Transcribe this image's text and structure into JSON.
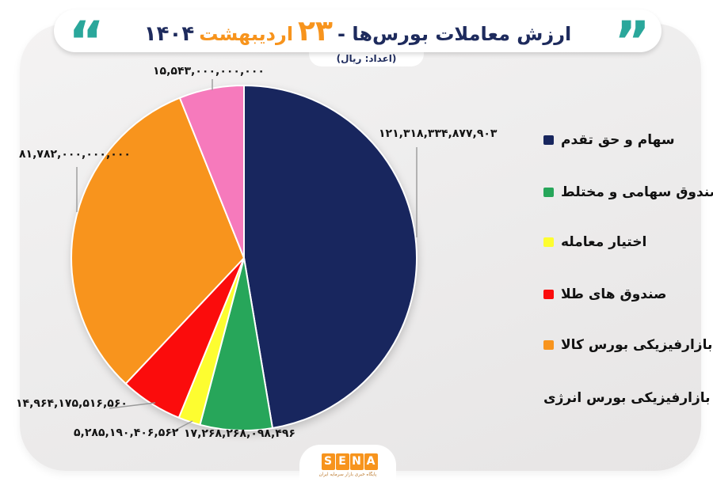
{
  "header": {
    "quote_left": "“",
    "quote_right": "”",
    "title_prefix": "ارزش معاملات بورس‌ها -",
    "title_day": "۲۳",
    "title_month": "اردیبهشت",
    "title_year": "۱۴۰۴",
    "subtitle": "(اعداد: ریال)"
  },
  "chart_data": {
    "type": "pie",
    "title": "ارزش معاملات بورس‌ها - ۲۳ اردیبهشت ۱۴۰۴",
    "unit_note": "(اعداد: ریال)",
    "start_angle": "12-oclock",
    "direction": "clockwise",
    "legend_position": "right",
    "slices": [
      {
        "label": "سهام و حق تقدم",
        "value": 121318334877903,
        "display_value": "۱۲۱,۳۱۸,۳۳۴,۸۷۷,۹۰۳",
        "color": "#18265E"
      },
      {
        "label": "صندوق سهامی و مختلط",
        "value": 17268268098496,
        "display_value": "۱۷,۲۶۸,۲۶۸,۰۹۸,۴۹۶",
        "color": "#27A65A"
      },
      {
        "label": "اختیار معامله",
        "value": 5285190406562,
        "display_value": "۵,۲۸۵,۱۹۰,۴۰۶,۵۶۲",
        "color": "#FDFD30"
      },
      {
        "label": "صندوق های طلا",
        "value": 14964175516560,
        "display_value": "۱۴,۹۶۴,۱۷۵,۵۱۶,۵۶۰",
        "color": "#FB0C0C"
      },
      {
        "label": "بازارفیزیکی بورس کالا",
        "value": 81782000000000,
        "display_value": "۸۱,۷۸۲,۰۰۰,۰۰۰,۰۰۰",
        "color": "#F8941D"
      },
      {
        "label": "بازارفیزیکی بورس انرژی",
        "value": 15543000000000,
        "display_value": "۱۵,۵۴۳,۰۰۰,۰۰۰,۰۰۰",
        "color": "#F67ABC"
      }
    ]
  },
  "footer": {
    "logo_letters": {
      "l0": "S",
      "l1": "E",
      "l2": "N",
      "l3": "A"
    },
    "tagline": "پایگاه خبری بازار سرمایه ایران"
  }
}
